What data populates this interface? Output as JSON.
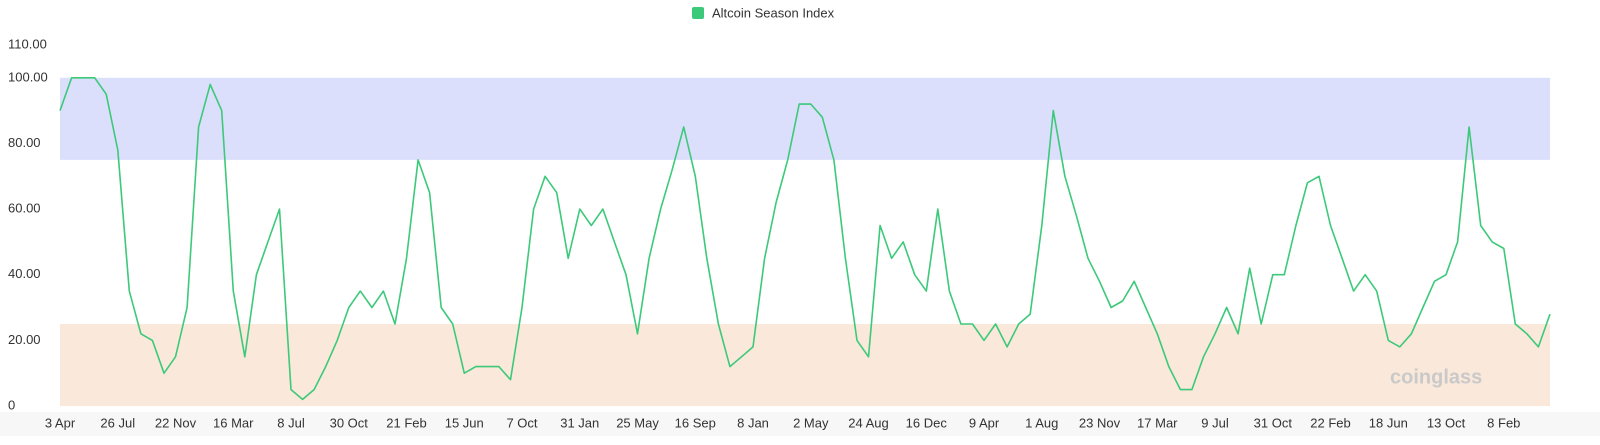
{
  "chart_data": {
    "type": "line",
    "legend": "Altcoin Season Index",
    "watermark": "coinglass",
    "ylim": [
      0,
      110
    ],
    "yticks": [
      0,
      {
        "value": 20,
        "label": "20.00"
      },
      {
        "value": 40,
        "label": "40.00"
      },
      {
        "value": 60,
        "label": "60.00"
      },
      {
        "value": 80,
        "label": "80.00"
      },
      {
        "value": 100,
        "label": "100.00"
      },
      {
        "value": 110,
        "label": "110.00"
      }
    ],
    "bands": [
      {
        "from": 75,
        "to": 100,
        "color": "#dcdffb"
      },
      {
        "from": 0,
        "to": 25,
        "color": "#fae8da"
      }
    ],
    "categories": [
      "3 Apr",
      null,
      null,
      null,
      null,
      "26 Jul",
      null,
      null,
      null,
      null,
      "22 Nov",
      null,
      null,
      null,
      null,
      "16 Mar",
      null,
      null,
      null,
      null,
      "8 Jul",
      null,
      null,
      null,
      null,
      "30 Oct",
      null,
      null,
      null,
      null,
      "21 Feb",
      null,
      null,
      null,
      null,
      "15 Jun",
      null,
      null,
      null,
      null,
      "7 Oct",
      null,
      null,
      null,
      null,
      "31 Jan",
      null,
      null,
      null,
      null,
      "25 May",
      null,
      null,
      null,
      null,
      "16 Sep",
      null,
      null,
      null,
      null,
      "8 Jan",
      null,
      null,
      null,
      null,
      "2 May",
      null,
      null,
      null,
      null,
      "24 Aug",
      null,
      null,
      null,
      null,
      "16 Dec",
      null,
      null,
      null,
      null,
      "9 Apr",
      null,
      null,
      null,
      null,
      "1 Aug",
      null,
      null,
      null,
      null,
      "23 Nov",
      null,
      null,
      null,
      null,
      "17 Mar",
      null,
      null,
      null,
      null,
      "9 Jul",
      null,
      null,
      null,
      null,
      "31 Oct",
      null,
      null,
      null,
      null,
      "22 Feb",
      null,
      null,
      null,
      null,
      "18 Jun",
      null,
      null,
      null,
      null,
      "13 Oct",
      null,
      null,
      null,
      null,
      "8 Feb",
      null,
      null,
      null,
      null
    ],
    "series": [
      {
        "name": "Altcoin Season Index",
        "color": "#3cc97a",
        "values": [
          90,
          100,
          100,
          100,
          95,
          78,
          35,
          22,
          20,
          10,
          15,
          30,
          85,
          98,
          90,
          35,
          15,
          40,
          50,
          60,
          5,
          2,
          5,
          12,
          20,
          30,
          35,
          30,
          35,
          25,
          45,
          75,
          65,
          30,
          25,
          10,
          12,
          12,
          12,
          8,
          30,
          60,
          70,
          65,
          45,
          60,
          55,
          60,
          50,
          40,
          22,
          45,
          60,
          72,
          85,
          70,
          45,
          25,
          12,
          15,
          18,
          45,
          62,
          75,
          92,
          92,
          88,
          75,
          45,
          20,
          15,
          55,
          45,
          50,
          40,
          35,
          60,
          35,
          25,
          25,
          20,
          25,
          18,
          25,
          28,
          55,
          90,
          70,
          58,
          45,
          38,
          30,
          32,
          38,
          30,
          22,
          12,
          5,
          5,
          15,
          22,
          30,
          22,
          42,
          25,
          40,
          40,
          55,
          68,
          70,
          55,
          45,
          35,
          40,
          35,
          20,
          18,
          22,
          30,
          38,
          40,
          50,
          85,
          55,
          50,
          48,
          25,
          22,
          18,
          28
        ]
      }
    ]
  }
}
